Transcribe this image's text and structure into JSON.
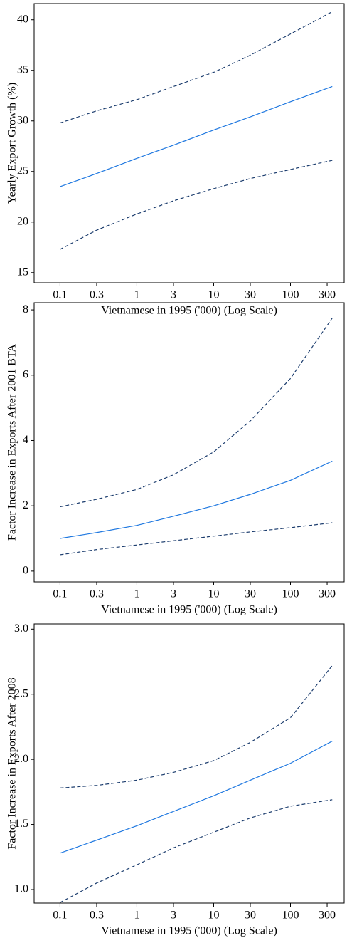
{
  "chart_data": [
    {
      "type": "line",
      "xscale": "log",
      "xlabel": "Vietnamese in 1995 ('000) (Log Scale)",
      "ylabel": "Yearly Export Growth (%)",
      "x": [
        0.1,
        0.3,
        1,
        3,
        10,
        30,
        100,
        350
      ],
      "series": [
        {
          "color": "#1f78e0",
          "style": "solid",
          "values": [
            23.5,
            24.8,
            26.3,
            27.6,
            29.1,
            30.4,
            31.9,
            33.4
          ]
        },
        {
          "color": "#1c3d6e",
          "style": "dashed",
          "values": [
            29.8,
            31.0,
            32.1,
            33.4,
            34.8,
            36.5,
            38.6,
            40.8
          ]
        },
        {
          "color": "#1c3d6e",
          "style": "dashed",
          "values": [
            17.3,
            19.2,
            20.8,
            22.1,
            23.3,
            24.3,
            25.2,
            26.1
          ]
        }
      ],
      "xlim": [
        0.046,
        500
      ],
      "xticks": [
        0.1,
        0.3,
        1,
        3,
        10,
        30,
        100,
        300
      ],
      "ylim": [
        14,
        41.6
      ],
      "yticks": [
        15,
        20,
        25,
        30,
        35,
        40
      ]
    },
    {
      "type": "line",
      "xscale": "log",
      "xlabel": "Vietnamese in 1995 ('000) (Log Scale)",
      "ylabel": "Factor Increase in Exports After 2001 BTA",
      "x": [
        0.1,
        0.3,
        1,
        3,
        10,
        30,
        100,
        350
      ],
      "series": [
        {
          "color": "#1f78e0",
          "style": "solid",
          "values": [
            1.0,
            1.18,
            1.4,
            1.68,
            2.0,
            2.35,
            2.78,
            3.37
          ]
        },
        {
          "color": "#1c3d6e",
          "style": "dashed",
          "values": [
            1.97,
            2.2,
            2.5,
            2.95,
            3.65,
            4.6,
            5.9,
            7.75
          ]
        },
        {
          "color": "#1c3d6e",
          "style": "dashed",
          "values": [
            0.5,
            0.66,
            0.8,
            0.93,
            1.07,
            1.2,
            1.33,
            1.48
          ]
        }
      ],
      "xlim": [
        0.046,
        500
      ],
      "xticks": [
        0.1,
        0.3,
        1,
        3,
        10,
        30,
        100,
        300
      ],
      "ylim": [
        -0.33,
        8.22
      ],
      "yticks": [
        0,
        2,
        4,
        6,
        8
      ]
    },
    {
      "type": "line",
      "xscale": "log",
      "xlabel": "Vietnamese in 1995 ('000) (Log Scale)",
      "ylabel": "Factor Increase in Exports After 2008",
      "x": [
        0.1,
        0.3,
        1,
        3,
        10,
        30,
        100,
        350
      ],
      "series": [
        {
          "color": "#1f78e0",
          "style": "solid",
          "values": [
            1.28,
            1.38,
            1.49,
            1.6,
            1.72,
            1.84,
            1.97,
            2.14
          ]
        },
        {
          "color": "#1c3d6e",
          "style": "dashed",
          "values": [
            1.78,
            1.8,
            1.84,
            1.9,
            1.99,
            2.13,
            2.32,
            2.72
          ]
        },
        {
          "color": "#1c3d6e",
          "style": "dashed",
          "values": [
            0.9,
            1.05,
            1.19,
            1.32,
            1.44,
            1.55,
            1.64,
            1.69
          ]
        }
      ],
      "xlim": [
        0.046,
        500
      ],
      "xticks": [
        0.1,
        0.3,
        1,
        3,
        10,
        30,
        100,
        300
      ],
      "ylim": [
        0.896,
        3.04
      ],
      "yticks": [
        {
          "value": 1,
          "label": "1.0"
        },
        1.5,
        {
          "value": 2,
          "label": "2.0"
        },
        2.5,
        {
          "value": 3,
          "label": "3.0"
        }
      ]
    }
  ]
}
